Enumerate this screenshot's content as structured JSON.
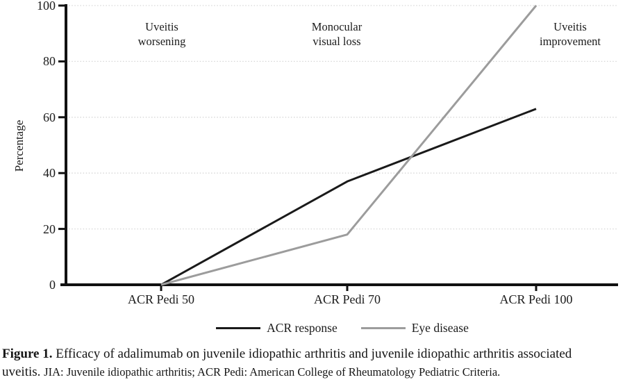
{
  "chart_data": {
    "type": "line",
    "categories": [
      "ACR Pedi 50",
      "ACR Pedi 70",
      "ACR Pedi 100"
    ],
    "series": [
      {
        "name": "ACR response",
        "color": "#1a1a1a",
        "values": [
          0,
          37,
          63
        ]
      },
      {
        "name": "Eye disease",
        "color": "#9c9c9c",
        "values": [
          0,
          18,
          100
        ]
      }
    ],
    "title": "",
    "xlabel": "",
    "ylabel": "Percentage",
    "ylim": [
      0,
      100
    ],
    "yticks": [
      0,
      20,
      40,
      60,
      80,
      100
    ],
    "grid": "dotted-horizontal",
    "gridline_color": "#d6d6d6",
    "axis_color": "#111111",
    "legend_position": "bottom-center",
    "annotations": [
      {
        "text": "Uveitis\nworsening",
        "category": "ACR Pedi 50"
      },
      {
        "text": "Monocular\nvisual loss",
        "category": "ACR Pedi 70"
      },
      {
        "text": "Uveitis\nimprovement",
        "category": "ACR Pedi 100"
      }
    ]
  },
  "legend": {
    "items": [
      {
        "label": "ACR response",
        "color": "#1a1a1a"
      },
      {
        "label": "Eye disease",
        "color": "#9c9c9c"
      }
    ]
  },
  "caption": {
    "label": "Figure 1.",
    "text": "Efficacy of adalimumab on juvenile idiopathic arthritis and juvenile idiopathic arthritis associated uveitis.",
    "note": "JIA: Juvenile idiopathic arthritis; ACR Pedi: American College of Rheumatology Pediatric Criteria."
  }
}
